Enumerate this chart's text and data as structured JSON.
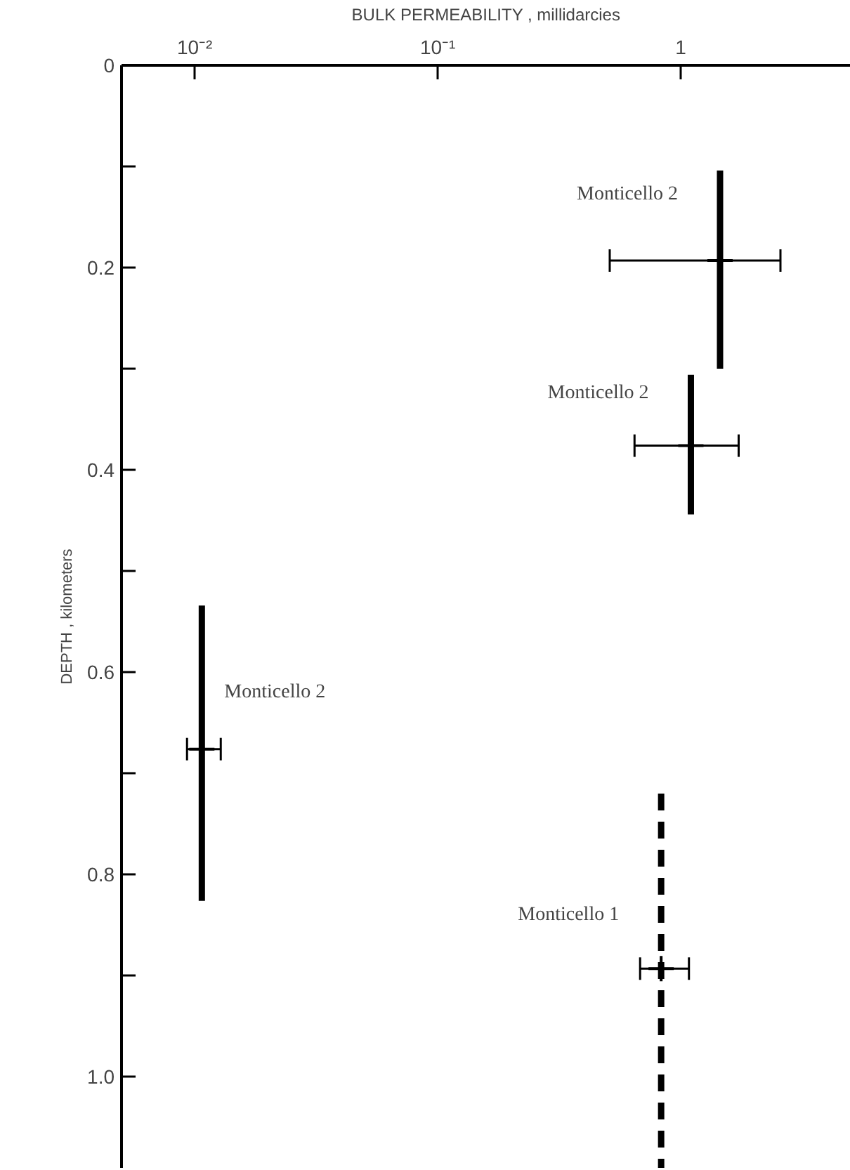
{
  "chart_data": {
    "type": "line",
    "xlabel": "BULK PERMEABILITY , millidarcies",
    "ylabel": "DEPTH , kilometers",
    "log": "x",
    "xlim": [
      0.005,
      5
    ],
    "ylim": [
      1.09,
      0
    ],
    "xticks": [
      {
        "value": 0.01,
        "label": "10⁻²"
      },
      {
        "value": 0.1,
        "label": "10⁻¹"
      },
      1
    ],
    "yticks": [
      0,
      {
        "value": 0.1,
        "label": null
      },
      0.2,
      {
        "value": 0.3,
        "label": null
      },
      0.4,
      {
        "value": 0.5,
        "label": null
      },
      0.6,
      {
        "value": 0.7,
        "label": null
      },
      0.8,
      {
        "value": 0.9,
        "label": null
      },
      {
        "value": 1.0,
        "label": "1.0"
      }
    ],
    "grid": false,
    "series": [
      {
        "color": "#000000",
        "line_style": "solid",
        "x": [
          1.45,
          1.45
        ],
        "values": [
          0.104,
          0.3
        ]
      },
      {
        "type": "scatter",
        "color": "#000000",
        "marker": "cross",
        "x": [
          1.45
        ],
        "values": [
          0.193
        ],
        "xerrors": [
          [
            0.51,
            2.57
          ]
        ]
      },
      {
        "color": "#000000",
        "line_style": "solid",
        "x": [
          1.1,
          1.1
        ],
        "values": [
          0.306,
          0.444
        ]
      },
      {
        "type": "scatter",
        "color": "#000000",
        "marker": "cross",
        "x": [
          1.1
        ],
        "values": [
          0.376
        ],
        "xerrors": [
          [
            0.645,
            1.73
          ]
        ]
      },
      {
        "color": "#000000",
        "line_style": "solid",
        "x": [
          0.0107,
          0.0107
        ],
        "values": [
          0.534,
          0.826
        ]
      },
      {
        "type": "scatter",
        "color": "#000000",
        "marker": "cross",
        "x": [
          0.0107
        ],
        "values": [
          0.676
        ],
        "xerrors": [
          [
            0.0093,
            0.0128
          ]
        ]
      },
      {
        "color": "#000000",
        "line_style": "dashed",
        "x": [
          0.83,
          0.83
        ],
        "values": [
          0.72,
          1.09
        ]
      },
      {
        "type": "scatter",
        "color": "#000000",
        "marker": "cross",
        "x": [
          0.83
        ],
        "values": [
          0.893
        ],
        "xerrors": [
          [
            0.68,
            1.08
          ]
        ]
      }
    ],
    "annotations": [
      {
        "text": "Monticello 2",
        "x": 1.45,
        "y": 0.128
      },
      {
        "text": "Monticello 2",
        "x": 1.1,
        "y": 0.324
      },
      {
        "text": "Monticello 2",
        "x": 0.0107,
        "y": 0.62
      },
      {
        "text": "Monticello 1",
        "x": 0.83,
        "y": 0.84
      }
    ]
  }
}
